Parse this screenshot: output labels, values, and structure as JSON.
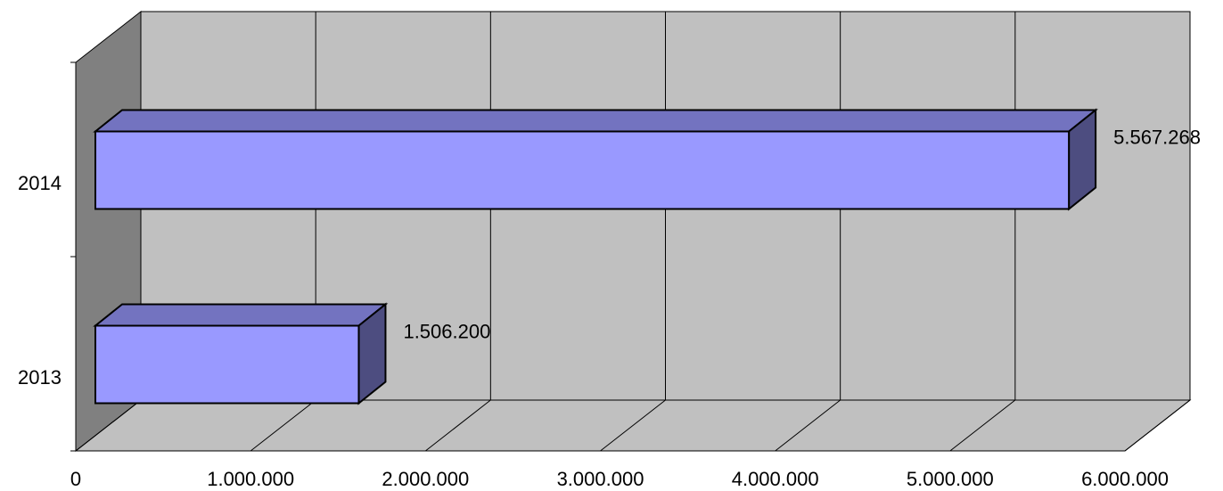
{
  "chart_data": {
    "type": "bar",
    "orientation": "horizontal",
    "style": "3d",
    "categories": [
      "2013",
      "2014"
    ],
    "values": [
      1506200,
      5567268
    ],
    "data_labels": [
      "1.506.200",
      "5.567.268"
    ],
    "xlim": [
      0,
      6000000
    ],
    "x_ticks": [
      0,
      1000000,
      2000000,
      3000000,
      4000000,
      5000000,
      6000000
    ],
    "x_tick_labels": [
      "0",
      "1.000.000",
      "2.000.000",
      "3.000.000",
      "4.000.000",
      "5.000.000",
      "6.000.000"
    ],
    "title": "",
    "xlabel": "",
    "ylabel": "",
    "grid": true,
    "legend": "none",
    "colors": {
      "bar_front": "#9999ff",
      "bar_top": "#7373c0",
      "bar_side": "#4d4d80",
      "back_wall": "#c0c0c0",
      "floor": "#c0c0c0",
      "side_wall": "#808080",
      "gridline": "#000000",
      "background": "#ffffff"
    }
  }
}
